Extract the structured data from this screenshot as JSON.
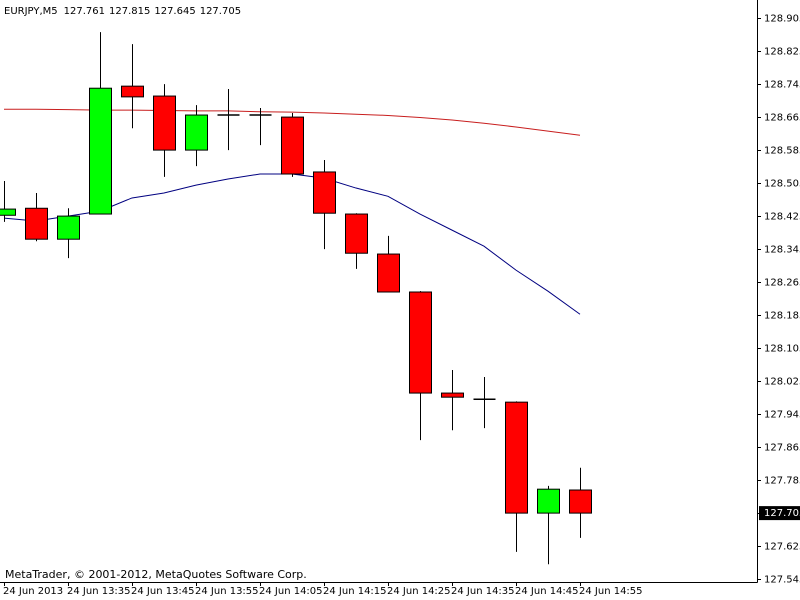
{
  "chart_data": {
    "type": "candlestick",
    "title": "EURJPY,M5",
    "annotation": "MetaTrader, © 2001-2012, MetaQuotes Software Corp.",
    "categories": [
      "24 Jun 2013",
      null,
      "24 Jun 13:35",
      null,
      "24 Jun 13:45",
      null,
      "24 Jun 13:55",
      null,
      "24 Jun 14:05",
      null,
      "24 Jun 14:15",
      null,
      "24 Jun 14:25",
      null,
      "24 Jun 14:35",
      null,
      "24 Jun 14:45",
      null,
      "24 Jun 14:55"
    ],
    "open": [
      128.427,
      128.444,
      128.369,
      128.43,
      128.74,
      128.716,
      128.585,
      128.67,
      128.67,
      128.665,
      128.532,
      128.43,
      128.333,
      128.241,
      127.996,
      127.981,
      127.974,
      127.705,
      127.761
    ],
    "high": [
      128.51,
      128.481,
      128.444,
      128.871,
      128.842,
      128.745,
      128.694,
      128.733,
      128.687,
      128.675,
      128.561,
      128.432,
      128.377,
      128.243,
      128.052,
      128.035,
      127.976,
      127.771,
      127.815
    ],
    "low": [
      128.411,
      128.364,
      128.323,
      128.43,
      128.638,
      128.52,
      128.546,
      128.585,
      128.597,
      128.52,
      128.345,
      128.297,
      128.241,
      127.882,
      127.906,
      127.911,
      127.611,
      127.581,
      127.645
    ],
    "close": [
      128.442,
      128.369,
      128.425,
      128.735,
      128.714,
      128.585,
      128.67,
      128.67,
      128.67,
      128.527,
      128.432,
      128.335,
      128.241,
      127.996,
      127.986,
      127.981,
      127.705,
      127.763,
      127.705
    ],
    "up_color": "#00ff00",
    "down_color": "#ff0000",
    "lines": [
      {
        "color": "#000080",
        "values": [
          128.42,
          128.413,
          128.425,
          128.437,
          128.469,
          128.481,
          128.5,
          128.515,
          128.527,
          128.527,
          128.517,
          128.493,
          128.473,
          128.43,
          128.391,
          128.352,
          128.294,
          128.243,
          128.187
        ]
      },
      {
        "color": "#c81e1e",
        "values": [
          128.684,
          128.684,
          128.683,
          128.682,
          128.682,
          128.681,
          128.68,
          128.68,
          128.678,
          128.677,
          128.675,
          128.672,
          128.669,
          128.664,
          128.658,
          128.65,
          128.641,
          128.631,
          128.621
        ]
      }
    ],
    "ylim": [
      127.538,
      128.944
    ],
    "yticks": [
      128.905,
      128.825,
      128.745,
      128.665,
      128.585,
      128.505,
      128.425,
      128.345,
      128.265,
      128.185,
      128.105,
      128.025,
      127.945,
      127.865,
      127.785,
      127.705,
      127.625,
      127.545
    ],
    "grid": false
  }
}
